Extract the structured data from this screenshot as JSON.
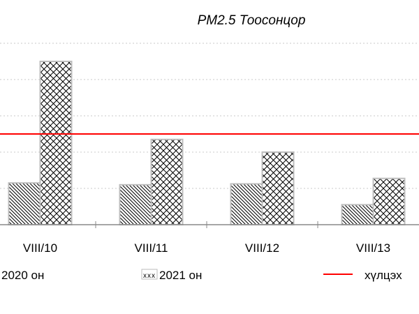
{
  "chart_data": {
    "type": "bar",
    "title": "PM2.5 Тоосонцор",
    "categories": [
      "VIII/10",
      "VIII/11",
      "VIII/12",
      "VIII/13"
    ],
    "series": [
      {
        "name": "2020 он",
        "values": [
          23,
          22,
          22.5,
          11
        ],
        "pattern": "diagonal"
      },
      {
        "name": "2021 он",
        "values": [
          90,
          47,
          40,
          25.5
        ],
        "pattern": "crosshatch"
      }
    ],
    "reference_line": {
      "name": "хүлцэх",
      "value": 50,
      "color": "#ff0000"
    },
    "ylim": [
      0,
      100
    ],
    "ytick_step": 20,
    "grid": true,
    "legend": "bottom",
    "legend_swatch_text": "xxx"
  }
}
